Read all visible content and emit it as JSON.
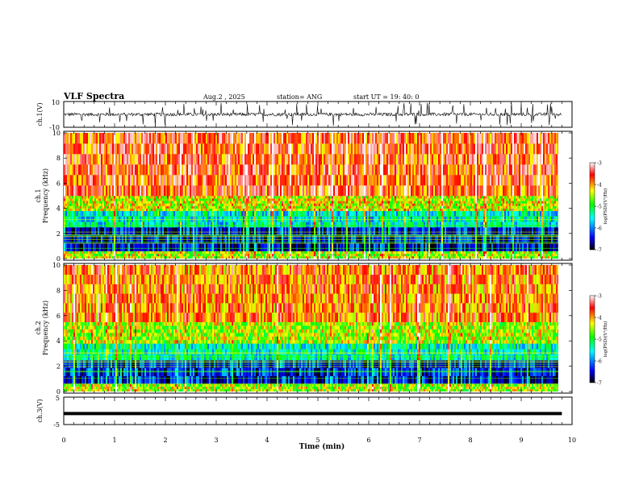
{
  "header": {
    "title": "VLF Spectra",
    "date": "Aug.2 , 2025",
    "station": "station= ANG",
    "start": "start UT = 19: 40: 0"
  },
  "chart_data": [
    {
      "type": "line",
      "panel": "ch1-waveform",
      "ylabel": "ch.1(V)",
      "ylim": [
        -10,
        10
      ],
      "yticks": [
        "10",
        "-10"
      ],
      "x_range_min": [
        0,
        9.8
      ],
      "description_values": {
        "baseline": 0,
        "typical_spike_min": -8,
        "typical_spike_max": 8
      }
    },
    {
      "type": "heatmap",
      "panel": "ch1-spectrogram",
      "ylabel": "ch.1\nFrequency (kHz)",
      "ylabel_lines": [
        "ch.1",
        "Frequency (kHz)"
      ],
      "ylim": [
        0,
        10
      ],
      "yticks": [
        "0",
        "2",
        "4",
        "6",
        "8",
        "10"
      ],
      "x_range_min": [
        0,
        9.8
      ],
      "bands": [
        {
          "from_khz": 0,
          "to_khz": 0.6,
          "level": -4.5
        },
        {
          "from_khz": 0.6,
          "to_khz": 2.5,
          "level": -6.5
        },
        {
          "from_khz": 2.5,
          "to_khz": 3.8,
          "level": -5.5
        },
        {
          "from_khz": 3.8,
          "to_khz": 5.0,
          "level": -4.4
        },
        {
          "from_khz": 5.0,
          "to_khz": 10,
          "level": -3.7
        }
      ]
    },
    {
      "type": "heatmap",
      "panel": "ch2-spectrogram",
      "ylabel_lines": [
        "ch.2",
        "Frequency (kHz)"
      ],
      "ylim": [
        0,
        10
      ],
      "yticks": [
        "0",
        "2",
        "4",
        "6",
        "8",
        "10"
      ],
      "x_range_min": [
        0,
        9.8
      ],
      "bands": [
        {
          "from_khz": 0,
          "to_khz": 0.6,
          "level": -4.5
        },
        {
          "from_khz": 0.6,
          "to_khz": 2.5,
          "level": -6.4
        },
        {
          "from_khz": 2.5,
          "to_khz": 3.8,
          "level": -5.4
        },
        {
          "from_khz": 3.8,
          "to_khz": 5.5,
          "level": -4.5
        },
        {
          "from_khz": 5.5,
          "to_khz": 10,
          "level": -3.9
        }
      ]
    },
    {
      "type": "line",
      "panel": "ch3-waveform",
      "ylabel": "ch.3(V)",
      "ylim": [
        -5,
        5
      ],
      "yticks": [
        "5",
        "0",
        "-5"
      ],
      "x_range_min": [
        0,
        9.8
      ],
      "description_values": {
        "baseline": -1.0
      }
    }
  ],
  "xaxis": {
    "label": "Time (min)",
    "ticks": [
      "0",
      "1",
      "2",
      "3",
      "4",
      "5",
      "6",
      "7",
      "8",
      "9",
      "10"
    ],
    "xlim": [
      0,
      10
    ]
  },
  "colorbar": {
    "label": "log(PSD)(V²/Hz)",
    "range": [
      -7,
      -3
    ],
    "ticks": [
      "-3",
      "-4",
      "-5",
      "-6",
      "-7"
    ],
    "colors": [
      "#000000",
      "#0000ff",
      "#00ffff",
      "#00ff00",
      "#ffff00",
      "#ff0000",
      "#ffffff"
    ]
  }
}
